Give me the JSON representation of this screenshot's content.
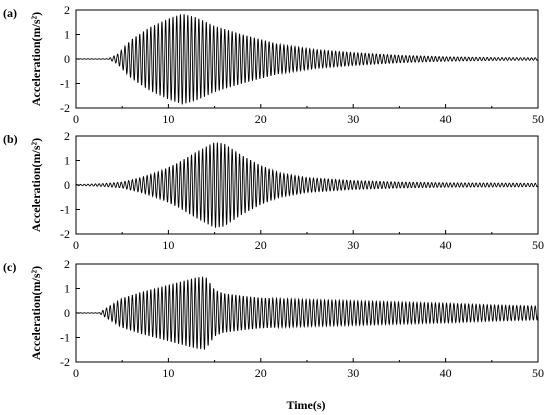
{
  "chart_data": {
    "xlabel": "Time(s)",
    "panels": [
      {
        "label": "(a)",
        "type": "line",
        "ylabel": "Acceleration(m/s²)",
        "xlim": [
          0,
          50
        ],
        "ylim": [
          -2,
          2
        ],
        "xticks": [
          0,
          10,
          20,
          30,
          40,
          50
        ],
        "yticks": [
          -2,
          -1,
          0,
          1,
          2
        ],
        "envelope_time": [
          0,
          3.5,
          4.5,
          6,
          8,
          10,
          11.5,
          13,
          15,
          18,
          22,
          26,
          30,
          35,
          40,
          45,
          50
        ],
        "envelope_amplitude": [
          0.01,
          0.01,
          0.2,
          0.8,
          1.3,
          1.65,
          1.85,
          1.7,
          1.35,
          1.0,
          0.6,
          0.38,
          0.26,
          0.15,
          0.09,
          0.06,
          0.05
        ],
        "oscillation_frequency_hz": 2.5
      },
      {
        "label": "(b)",
        "type": "line",
        "ylabel": "Acceleration(m/s²)",
        "xlim": [
          0,
          50
        ],
        "ylim": [
          -2,
          2
        ],
        "xticks": [
          0,
          10,
          20,
          30,
          40,
          50
        ],
        "yticks": [
          -2,
          -1,
          0,
          1,
          2
        ],
        "envelope_time": [
          0,
          1,
          3,
          5,
          7,
          9,
          11,
          13,
          15,
          16,
          18,
          20,
          22,
          25,
          30,
          35,
          40,
          45,
          50
        ],
        "envelope_amplitude": [
          0.02,
          0.03,
          0.06,
          0.12,
          0.3,
          0.55,
          0.9,
          1.35,
          1.75,
          1.7,
          1.2,
          0.8,
          0.5,
          0.3,
          0.18,
          0.12,
          0.09,
          0.08,
          0.07
        ],
        "oscillation_frequency_hz": 2.5
      },
      {
        "label": "(c)",
        "type": "line",
        "ylabel": "Acceleration(m/s²)",
        "xlim": [
          0,
          50
        ],
        "ylim": [
          -2,
          2
        ],
        "xticks": [
          0,
          10,
          20,
          30,
          40,
          50
        ],
        "yticks": [
          -2,
          -1,
          0,
          1,
          2
        ],
        "envelope_time": [
          0,
          2.5,
          3.5,
          5,
          7,
          9,
          11,
          13,
          14,
          15,
          16,
          18,
          20,
          25,
          30,
          35,
          40,
          45,
          50
        ],
        "envelope_amplitude": [
          0.01,
          0.01,
          0.25,
          0.6,
          0.85,
          1.05,
          1.25,
          1.45,
          1.5,
          0.95,
          0.8,
          0.7,
          0.62,
          0.55,
          0.5,
          0.45,
          0.4,
          0.33,
          0.28
        ],
        "oscillation_frequency_hz": 2.5
      }
    ]
  }
}
